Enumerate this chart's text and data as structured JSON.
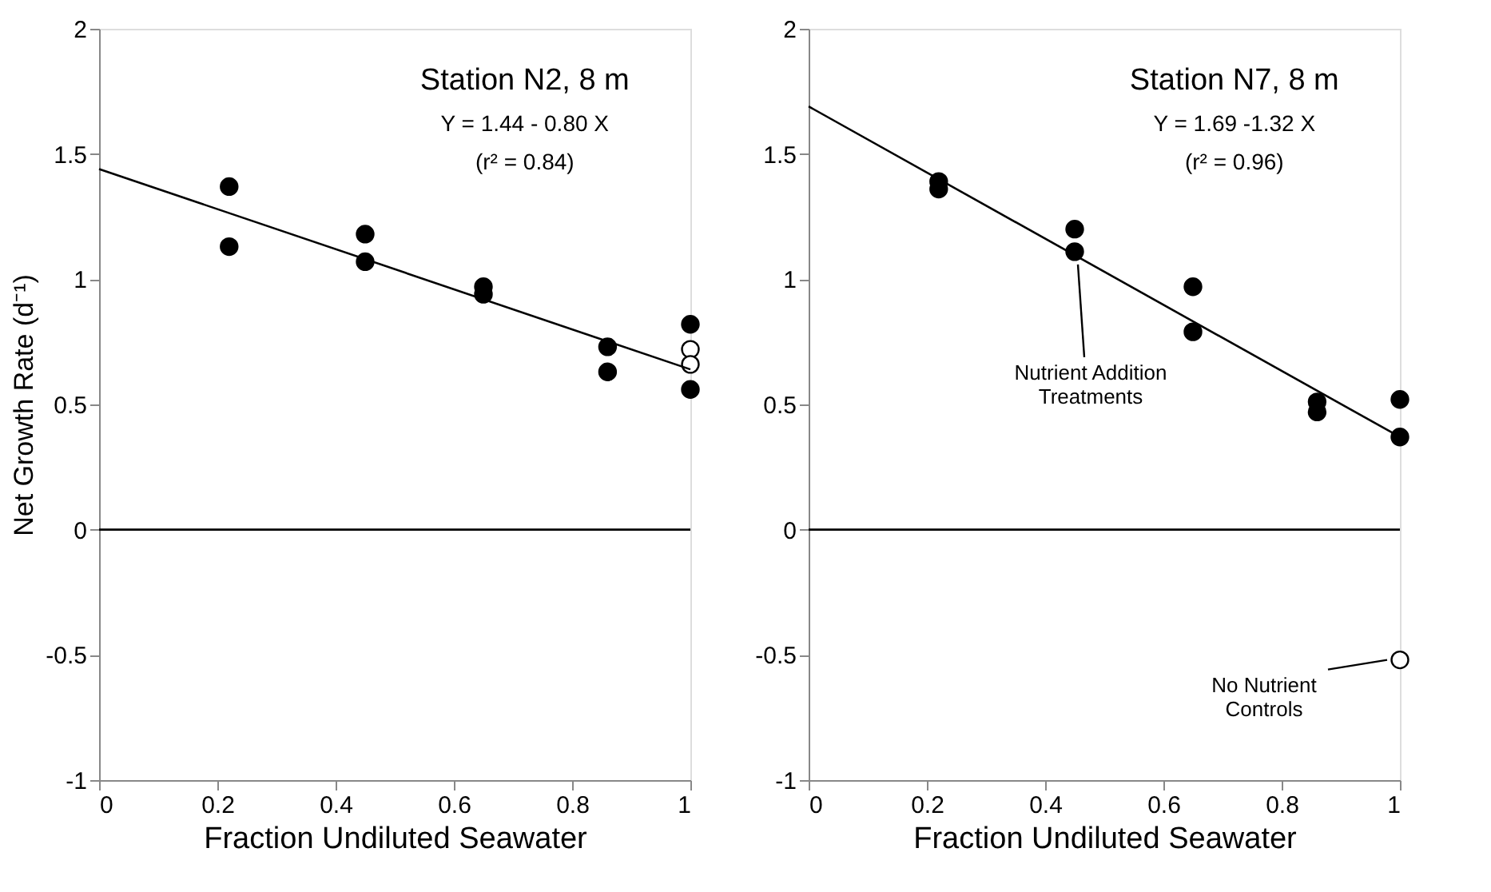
{
  "chart_data": [
    {
      "type": "scatter",
      "xlabel": "Fraction Undiluted Seawater",
      "ylabel": "Net Growth Rate (d⁻¹)",
      "xlim": [
        0,
        1
      ],
      "ylim": [
        -1,
        2
      ],
      "xticks": [
        0,
        0.2,
        0.4,
        0.6,
        0.8,
        1
      ],
      "yticks": [
        -1,
        -0.5,
        0,
        0.5,
        1,
        1.5,
        2
      ],
      "grid": false,
      "marker": "circle",
      "series": [
        {
          "color": "#000000",
          "x": [
            0.22,
            0.22,
            0.45,
            0.45,
            0.65,
            0.65,
            0.86,
            0.86,
            1,
            1
          ],
          "values": [
            1.37,
            1.13,
            1.18,
            1.07,
            0.97,
            0.94,
            0.73,
            0.63,
            0.82,
            0.56
          ]
        },
        {
          "color": "#ffffff",
          "x": [
            1,
            1
          ],
          "values": [
            0.72,
            0.66
          ]
        },
        {
          "type": "line",
          "marker": "none",
          "color": "#000000",
          "x": [
            0,
            1
          ],
          "values": [
            1.44,
            0.64
          ]
        }
      ],
      "ref_lines": [
        {
          "axis": "y",
          "value": 0,
          "color": "#000000"
        }
      ],
      "annotations": [
        "Station N2, 8 m",
        "Y = 1.44 - 0.80 X",
        "(r² = 0.84)"
      ]
    },
    {
      "type": "scatter",
      "xlabel": "Fraction Undiluted Seawater",
      "xlim": [
        0,
        1
      ],
      "ylim": [
        -1,
        2
      ],
      "xticks": [
        0,
        0.2,
        0.4,
        0.6,
        0.8,
        1
      ],
      "yticks": [
        -1,
        -0.5,
        0,
        0.5,
        1,
        1.5,
        2
      ],
      "grid": false,
      "marker": "circle",
      "series": [
        {
          "color": "#000000",
          "x": [
            0.22,
            0.22,
            0.45,
            0.45,
            0.65,
            0.65,
            0.86,
            0.86,
            1,
            1
          ],
          "values": [
            1.39,
            1.36,
            1.2,
            1.11,
            0.97,
            0.79,
            0.51,
            0.47,
            0.52,
            0.37
          ]
        },
        {
          "color": "#ffffff",
          "x": [
            1
          ],
          "values": [
            -0.52
          ]
        },
        {
          "type": "line",
          "marker": "none",
          "color": "#000000",
          "x": [
            0,
            1
          ],
          "values": [
            1.69,
            0.37
          ]
        }
      ],
      "ref_lines": [
        {
          "axis": "y",
          "value": 0,
          "color": "#000000"
        }
      ],
      "annotations": [
        "Station N7, 8 m",
        "Y = 1.69 -1.32 X",
        "(r² = 0.96)",
        {
          "text": "Nutrient Addition Treatments",
          "x": 0.45,
          "y": 1.11
        },
        {
          "text": "No Nutrient Controls",
          "x": 1,
          "y": -0.52
        }
      ]
    }
  ]
}
